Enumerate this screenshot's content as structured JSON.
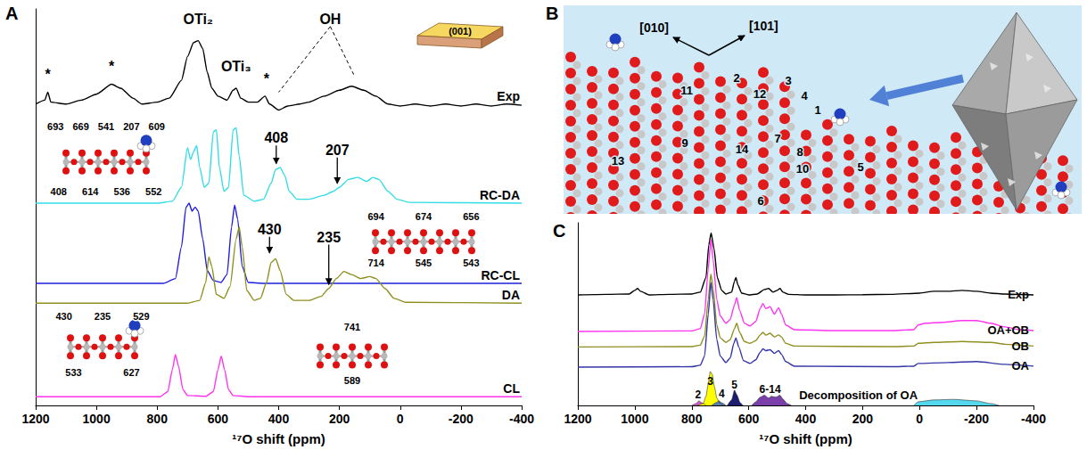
{
  "chart_data": [
    {
      "panel": "A",
      "type": "line",
      "xlabel": "¹⁷O shift (ppm)",
      "xlim": [
        1200,
        -400
      ],
      "xticks": [
        1200,
        1000,
        800,
        600,
        400,
        200,
        0,
        -200,
        -400
      ],
      "ylim": [
        0,
        100
      ],
      "tick_labels": "x",
      "grid": false,
      "series": [
        {
          "name": "Exp",
          "color": "#000000",
          "x": [
            1200,
            1170,
            1160,
            1150,
            1100,
            1050,
            1000,
            950,
            920,
            880,
            850,
            800,
            760,
            720,
            700,
            680,
            665,
            650,
            635,
            620,
            600,
            570,
            550,
            540,
            525,
            500,
            470,
            445,
            430,
            400,
            370,
            330,
            300,
            250,
            200,
            160,
            120,
            80,
            40,
            0,
            -50,
            -100,
            -150,
            -200,
            -250,
            -300,
            -350,
            -400
          ],
          "values": [
            76,
            77,
            79,
            76.5,
            76,
            77,
            78.5,
            81,
            80,
            77.5,
            76,
            76.5,
            77.5,
            82,
            88,
            91.5,
            92,
            90,
            84,
            80,
            78,
            77,
            79.5,
            80,
            77.5,
            76.5,
            76.5,
            78,
            76,
            74.5,
            75.5,
            76,
            76.5,
            78,
            79.5,
            80.5,
            79.5,
            78,
            76,
            75.5,
            76,
            75.5,
            76,
            75.5,
            76,
            75.5,
            76,
            75.7
          ]
        },
        {
          "name": "RC-DA",
          "color": "#33dde6",
          "x": [
            1200,
            800,
            750,
            720,
            700,
            690,
            680,
            670,
            660,
            645,
            630,
            615,
            605,
            595,
            580,
            565,
            550,
            540,
            530,
            515,
            480,
            450,
            425,
            410,
            395,
            380,
            365,
            340,
            300,
            250,
            220,
            200,
            170,
            140,
            110,
            90,
            70,
            40,
            10,
            -30,
            -400
          ],
          "values": [
            51,
            51,
            51.5,
            55,
            65,
            62,
            64,
            65.5,
            60,
            55,
            56,
            69,
            69.5,
            60,
            54,
            55,
            69.5,
            70,
            63,
            53,
            51.5,
            52,
            56,
            59.5,
            60,
            58,
            54,
            52,
            52,
            53,
            54,
            55,
            57,
            57.5,
            56.5,
            57.5,
            57,
            54,
            52,
            51.2,
            51
          ]
        },
        {
          "name": "RC-CL",
          "color": "#1f1fdd",
          "x": [
            1200,
            780,
            740,
            720,
            705,
            695,
            685,
            675,
            665,
            650,
            635,
            615,
            590,
            570,
            555,
            545,
            535,
            520,
            500,
            450,
            -400
          ],
          "values": [
            30.8,
            30.8,
            32,
            40,
            50,
            51,
            49,
            50,
            49,
            42,
            34,
            31.5,
            31,
            33,
            45,
            50.5,
            47,
            35,
            31,
            30.8,
            30.8
          ]
        },
        {
          "name": "DA",
          "color": "#8f8f1f",
          "x": [
            1200,
            700,
            660,
            640,
            630,
            620,
            605,
            580,
            560,
            540,
            530,
            520,
            505,
            480,
            460,
            440,
            425,
            410,
            395,
            375,
            350,
            300,
            260,
            235,
            210,
            185,
            160,
            130,
            100,
            80,
            50,
            20,
            -20,
            -400
          ],
          "values": [
            25.8,
            25.8,
            26.5,
            31,
            37.5,
            35,
            28,
            27,
            30,
            42,
            45,
            40,
            29,
            26.5,
            27,
            31,
            36,
            37,
            34,
            28,
            26.5,
            26.5,
            27.5,
            29.5,
            32,
            33.8,
            33,
            32,
            32.5,
            32,
            29.5,
            27,
            26,
            25.8
          ]
        },
        {
          "name": "CL",
          "color": "#ff33ee",
          "x": [
            1200,
            790,
            765,
            750,
            740,
            730,
            715,
            700,
            640,
            615,
            600,
            589,
            578,
            565,
            550,
            500,
            -400
          ],
          "values": [
            2.2,
            2.2,
            3.5,
            9,
            12.8,
            10,
            4,
            2.5,
            2.3,
            3.5,
            9,
            12.4,
            9,
            4,
            2.5,
            2.2,
            2.2
          ]
        }
      ],
      "annotations": [
        {
          "text": "OTi₂",
          "x": 665,
          "y": 96
        },
        {
          "text": "OTi₃",
          "x": 540,
          "y": 84
        },
        {
          "text": "OH",
          "x": 230,
          "y": 96,
          "lines_to": [
            [
              400,
              79
            ],
            [
              150,
              83
            ]
          ]
        },
        {
          "text": "*",
          "x": 1160,
          "y": 82
        },
        {
          "text": "*",
          "x": 950,
          "y": 84
        },
        {
          "text": "*",
          "x": 440,
          "y": 81
        },
        {
          "text": "408",
          "x": 408,
          "y": 66,
          "arrow_y": 61
        },
        {
          "text": "207",
          "x": 207,
          "y": 63,
          "arrow_y": 56
        },
        {
          "text": "430",
          "x": 430,
          "y": 43,
          "arrow_y": 38.5
        },
        {
          "text": "235",
          "x": 235,
          "y": 41,
          "arrow_y": 30.5
        }
      ],
      "facet_label": "(001)",
      "insets": [
        [
          "693",
          "669",
          "541",
          "207",
          "609",
          "408",
          "614",
          "536",
          "552"
        ],
        [
          "694",
          "674",
          "656",
          "714",
          "545",
          "543"
        ],
        [
          "430",
          "235",
          "529",
          "533",
          "627"
        ],
        [
          "741",
          "589"
        ]
      ]
    },
    {
      "panel": "C",
      "type": "line",
      "xlabel": "¹⁷O shift (ppm)",
      "xlim": [
        1200,
        -400
      ],
      "xticks": [
        1200,
        1000,
        800,
        600,
        400,
        200,
        0,
        -200,
        -400
      ],
      "ylim": [
        0,
        100
      ],
      "tick_labels": "x",
      "grid": false,
      "series": [
        {
          "name": "Exp",
          "color": "#000000",
          "x": [
            1200,
            1100,
            1020,
            1000,
            990,
            980,
            950,
            880,
            800,
            770,
            750,
            740,
            732,
            722,
            710,
            695,
            680,
            660,
            650,
            645,
            638,
            625,
            600,
            570,
            545,
            530,
            515,
            500,
            490,
            480,
            460,
            400,
            300,
            200,
            100,
            0,
            -50,
            -100,
            -150,
            -200,
            -250,
            -300,
            -400
          ],
          "values": [
            60.5,
            60.8,
            61,
            63,
            64,
            62.5,
            60.5,
            60.8,
            61,
            62,
            70,
            88,
            94.4,
            86,
            70,
            63,
            61,
            62,
            68,
            70,
            66,
            61.5,
            60.5,
            61,
            63.5,
            64,
            62,
            63,
            64,
            62,
            60.8,
            60.5,
            60.5,
            60.6,
            60.8,
            61.5,
            62.5,
            62.5,
            63,
            62.5,
            61.5,
            61,
            60.5
          ]
        },
        {
          "name": "OA+OB",
          "color": "#ff33ee",
          "x": [
            1200,
            800,
            770,
            755,
            742,
            733,
            725,
            712,
            700,
            680,
            665,
            650,
            642,
            632,
            615,
            595,
            575,
            560,
            550,
            540,
            525,
            510,
            495,
            485,
            470,
            440,
            300,
            100,
            20,
            5,
            -20,
            -80,
            -150,
            -200,
            -250,
            -300,
            -350,
            -400
          ],
          "values": [
            40.5,
            40.8,
            42,
            50,
            75,
            90.7,
            80,
            58,
            49,
            45,
            47,
            55,
            59,
            52,
            45,
            43.5,
            46,
            53,
            55.8,
            53,
            54,
            50,
            53.5,
            50,
            44,
            41.5,
            41,
            41,
            41.5,
            44,
            45,
            45.5,
            46.5,
            46.5,
            45,
            43,
            41.5,
            41
          ]
        },
        {
          "name": "OB",
          "color": "#8f8f1f",
          "x": [
            1200,
            800,
            770,
            755,
            742,
            733,
            725,
            712,
            700,
            680,
            665,
            650,
            642,
            632,
            615,
            595,
            575,
            560,
            550,
            540,
            525,
            510,
            495,
            485,
            470,
            440,
            100,
            20,
            5,
            -50,
            -150,
            -250,
            -300,
            -400
          ],
          "values": [
            32,
            32.2,
            33,
            38,
            58,
            72,
            64,
            44,
            37,
            34.5,
            36,
            42,
            45,
            40,
            35,
            34,
            35.5,
            38.5,
            40,
            38.5,
            39.5,
            37.5,
            38.6,
            37.5,
            34,
            32.5,
            32.2,
            32.5,
            34,
            34.5,
            35,
            34.5,
            33.5,
            32.5
          ]
        },
        {
          "name": "OA",
          "color": "#3535a8",
          "x": [
            1200,
            800,
            770,
            755,
            742,
            733,
            725,
            712,
            700,
            680,
            665,
            652,
            645,
            635,
            618,
            595,
            575,
            560,
            550,
            540,
            525,
            510,
            495,
            485,
            470,
            440,
            100,
            20,
            5,
            -100,
            -200,
            -300,
            -400
          ],
          "values": [
            21,
            21.2,
            22,
            27,
            50,
            67.4,
            58,
            36,
            27,
            23.5,
            26,
            34,
            37,
            32,
            24.5,
            23,
            25,
            29,
            31,
            30,
            30.5,
            28.5,
            30,
            28,
            24,
            21.5,
            21.2,
            21.5,
            23,
            23.5,
            24,
            22.5,
            21.5
          ]
        }
      ],
      "components": [
        {
          "name": "2",
          "type": "area",
          "color": "#cc55cc",
          "x": [
            800,
            785,
            775,
            765,
            750
          ],
          "values": [
            0,
            1,
            2.5,
            1.5,
            0
          ],
          "label_at": [
            778,
            4
          ]
        },
        {
          "name": "3",
          "type": "area",
          "color": "#ffff00",
          "x": [
            780,
            760,
            750,
            742,
            735,
            728,
            720,
            712,
            700,
            690
          ],
          "values": [
            0,
            1,
            5,
            12,
            18.6,
            17,
            10,
            4,
            1,
            0
          ],
          "label_at": [
            735,
            11
          ]
        },
        {
          "name": "4",
          "type": "area",
          "color": "#5b7fb0",
          "x": [
            730,
            715,
            705,
            695,
            680
          ],
          "values": [
            0,
            1.5,
            2.5,
            1.5,
            0
          ],
          "label_at": [
            695,
            4.5
          ]
        },
        {
          "name": "5",
          "type": "area",
          "color": "#1c1c70",
          "x": [
            675,
            660,
            650,
            642,
            630,
            620
          ],
          "values": [
            0,
            3,
            8.4,
            6,
            1.5,
            0
          ],
          "label_at": [
            650,
            9.5
          ]
        },
        {
          "name": "6-14",
          "type": "area",
          "color": "#7a3fa8",
          "x": [
            590,
            575,
            560,
            545,
            530,
            520,
            505,
            490,
            480,
            465,
            450
          ],
          "values": [
            0,
            2,
            4.5,
            5.6,
            4,
            5,
            4.5,
            5.6,
            3.5,
            1,
            0
          ],
          "label_at": [
            525,
            7
          ]
        },
        {
          "name": null,
          "type": "area",
          "color": "#55d8ee",
          "x": [
            20,
            5,
            -50,
            -120,
            -200,
            -250,
            -280
          ],
          "values": [
            0,
            2,
            3,
            3.3,
            2.5,
            1,
            0
          ]
        }
      ],
      "annotations": [
        {
          "text": "Decomposition of OA",
          "x": 215,
          "y": 3
        }
      ]
    }
  ],
  "diagram": {
    "panel": "B",
    "directions": [
      "[010]",
      "[101]"
    ],
    "sites": [
      "1",
      "2",
      "3",
      "4",
      "5",
      "6",
      "7",
      "8",
      "9",
      "10",
      "11",
      "12",
      "13",
      "14"
    ]
  }
}
